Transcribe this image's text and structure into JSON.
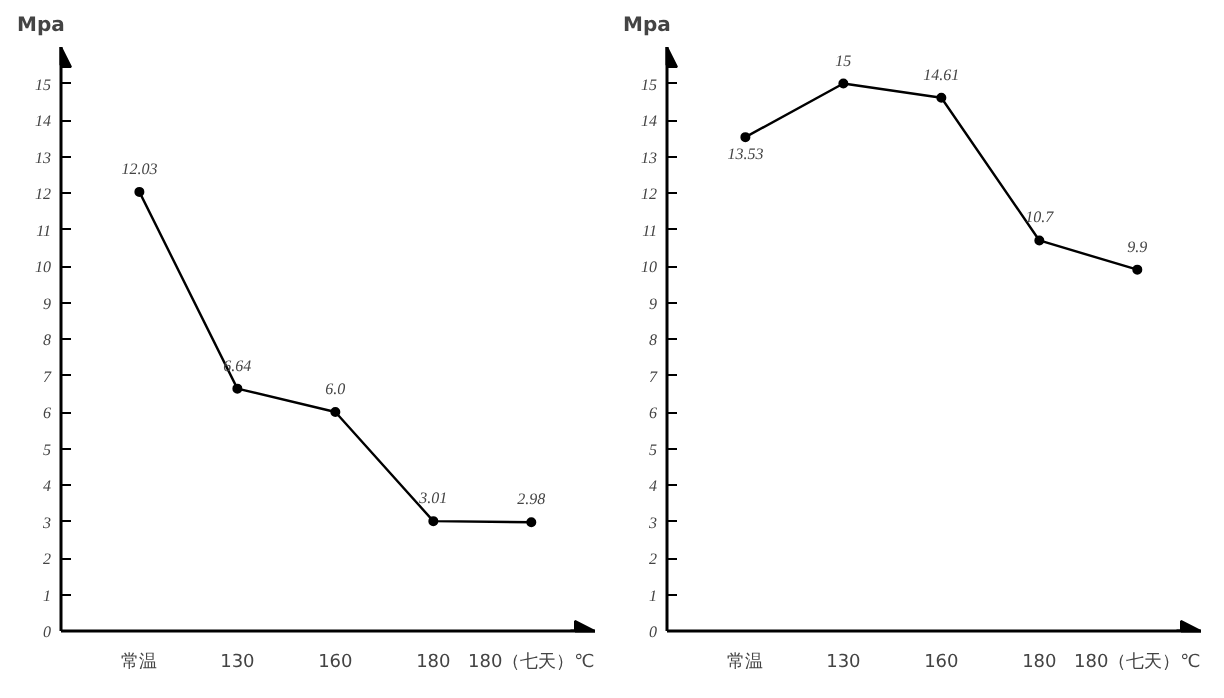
{
  "chart_data": [
    {
      "type": "line",
      "ylabel": "Mpa",
      "categories": [
        "常温",
        "130",
        "160",
        "180",
        "180（七天）℃"
      ],
      "ylim": [
        0,
        16
      ],
      "yticks": [
        0,
        1,
        2,
        3,
        4,
        5,
        6,
        7,
        8,
        9,
        10,
        11,
        12,
        13,
        14,
        15
      ],
      "grid": false,
      "marker": "circle",
      "line_style": "solid",
      "series": [
        {
          "color": "#000000",
          "values": [
            12.03,
            6.64,
            6.0,
            3.01,
            2.98
          ],
          "value_labels": [
            "12.03",
            "6.64",
            "6.0",
            "3.01",
            "2.98"
          ]
        }
      ]
    },
    {
      "type": "line",
      "ylabel": "Mpa",
      "categories": [
        "常温",
        "130",
        "160",
        "180",
        "180（七天）℃"
      ],
      "ylim": [
        0,
        16
      ],
      "yticks": [
        0,
        1,
        2,
        3,
        4,
        5,
        6,
        7,
        8,
        9,
        10,
        11,
        12,
        13,
        14,
        15
      ],
      "grid": false,
      "marker": "circle",
      "line_style": "solid",
      "series": [
        {
          "color": "#000000",
          "values": [
            13.53,
            15,
            14.61,
            10.7,
            9.9
          ],
          "value_labels": [
            "13.53",
            "15",
            "14.61",
            "10.7",
            "9.9"
          ]
        }
      ]
    }
  ]
}
